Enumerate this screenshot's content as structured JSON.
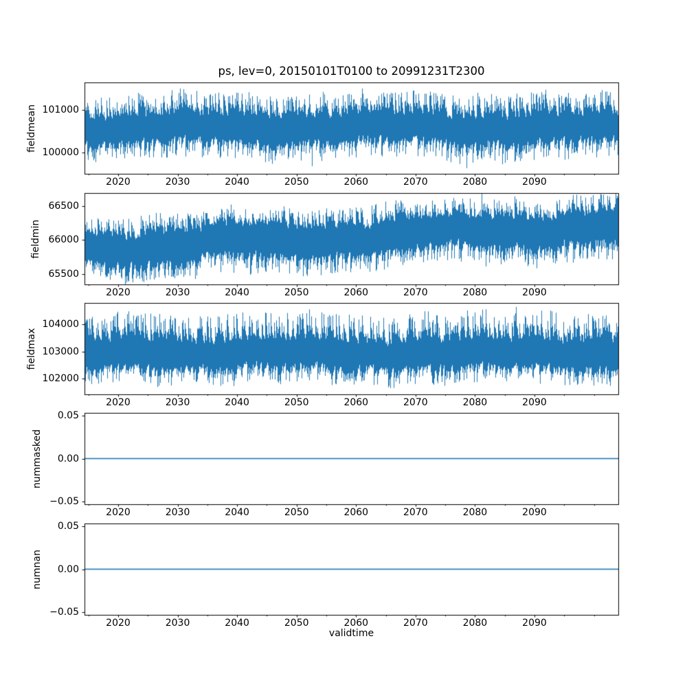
{
  "figure": {
    "title": "ps, lev=0, 20150101T0100 to 20991231T2300",
    "background": "#ffffff",
    "text_color": "#000000",
    "spine_color": "#000000",
    "line_color": "#1f77b4"
  },
  "x_axis": {
    "label": "validtime",
    "ticks": [
      2020,
      2030,
      2040,
      2050,
      2060,
      2070,
      2080,
      2090
    ],
    "tick_labels": [
      "2020",
      "2030",
      "2040",
      "2050",
      "2060",
      "2070",
      "2080",
      "2090"
    ],
    "minor_ticks": [
      2015,
      2025,
      2035,
      2045,
      2055,
      2065,
      2075,
      2085,
      2095,
      2100
    ],
    "range": [
      2014.3,
      2104.1
    ]
  },
  "chart_data": [
    {
      "type": "line",
      "series_name": "fieldmean",
      "ylabel": "fieldmean",
      "yticks": [
        101000,
        100000
      ],
      "ytick_labels": [
        "101000",
        "100000"
      ],
      "ylim": [
        99500,
        101645
      ],
      "x_range": [
        2014.3,
        2104.1
      ],
      "signal": {
        "kind": "noisy_band",
        "center_start": 100580,
        "center_end": 100580,
        "core_halfwidth": 280,
        "tail_up": 600,
        "tail_down": 520,
        "up_pow": 1.6,
        "down_pow": 2.0,
        "rare_up": 130,
        "rare_down": 300,
        "wobble": 55,
        "approx_min": 99600,
        "approx_max": 101500
      }
    },
    {
      "type": "line",
      "series_name": "fieldmin",
      "ylabel": "fieldmin",
      "yticks": [
        66500,
        66000,
        65500
      ],
      "ytick_labels": [
        "66500",
        "66000",
        "65500"
      ],
      "ylim": [
        65350,
        66690
      ],
      "x_range": [
        2014.3,
        2104.1
      ],
      "signal": {
        "kind": "noisy_band",
        "center_start": 65880,
        "center_end": 66220,
        "core_halfwidth": 200,
        "tail_up": 300,
        "tail_down": 340,
        "up_pow": 1.7,
        "down_pow": 1.9,
        "rare_up": 90,
        "rare_down": 110,
        "wobble": 45,
        "approx_min": 65450,
        "approx_max": 66650
      }
    },
    {
      "type": "line",
      "series_name": "fieldmax",
      "ylabel": "fieldmax",
      "yticks": [
        104000,
        103000,
        102000
      ],
      "ytick_labels": [
        "104000",
        "103000",
        "102000"
      ],
      "ylim": [
        101420,
        104785
      ],
      "x_range": [
        2014.3,
        2104.1
      ],
      "signal": {
        "kind": "noisy_band",
        "center_start": 102920,
        "center_end": 102920,
        "core_halfwidth": 460,
        "tail_up": 1150,
        "tail_down": 740,
        "up_pow": 1.9,
        "down_pow": 2.1,
        "rare_up": 180,
        "rare_down": 0,
        "wobble": 70,
        "approx_min": 101700,
        "approx_max": 104700
      }
    },
    {
      "type": "line",
      "series_name": "nummasked",
      "ylabel": "nummasked",
      "yticks": [
        0.05,
        0,
        -0.05
      ],
      "ytick_labels": [
        "0.05",
        "0.00",
        "−0.05"
      ],
      "ylim": [
        -0.0535,
        0.0535
      ],
      "x_range": [
        2014.3,
        2104.1
      ],
      "signal": {
        "kind": "constant",
        "value": 0
      }
    },
    {
      "type": "line",
      "series_name": "numnan",
      "ylabel": "numnan",
      "yticks": [
        0.05,
        0,
        -0.05
      ],
      "ytick_labels": [
        "0.05",
        "0.00",
        "−0.05"
      ],
      "ylim": [
        -0.0535,
        0.0535
      ],
      "x_range": [
        2014.3,
        2104.1
      ],
      "signal": {
        "kind": "constant",
        "value": 0
      }
    }
  ]
}
